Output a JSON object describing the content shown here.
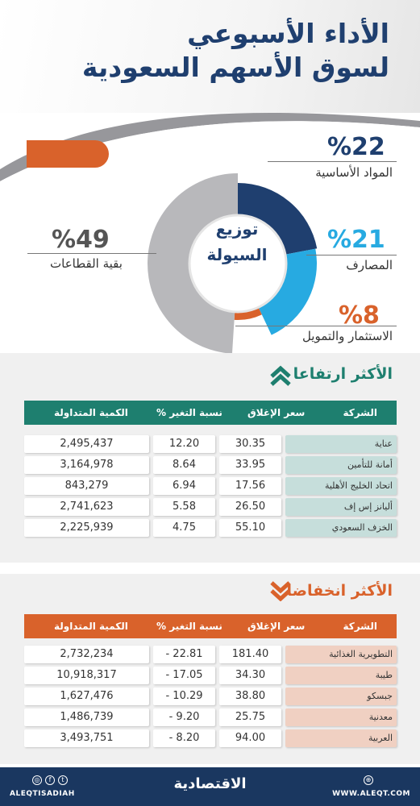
{
  "header": {
    "title_line1": "الأداء الأسبوعي",
    "title_line2": "لسوق الأسهم السعودية"
  },
  "colors": {
    "navy": "#1f3f6f",
    "light_blue": "#27aae1",
    "orange": "#d9622b",
    "grey": "#b8b8bb",
    "green": "#1e7f6f",
    "up_row": "#c6dedb",
    "down_row": "#f0d0c2"
  },
  "chart_data": {
    "type": "pie",
    "title": "توزيع السيولة",
    "labels": [
      "المواد الأساسية",
      "المصارف",
      "الاستثمار والتمويل",
      "بقية القطاعات"
    ],
    "values": [
      22,
      21,
      8,
      49
    ],
    "pct_labels": [
      "%22",
      "%21",
      "%8",
      "%49"
    ],
    "colors": [
      "#1f3f6f",
      "#27aae1",
      "#d9622b",
      "#b8b8bb"
    ]
  },
  "gainers": {
    "title": "الأكثر ارتفاعا",
    "headers": {
      "company": "الشركة",
      "close": "سعر الإغلاق",
      "change": "نسبة التغير %",
      "volume": "الكمية المتداولة"
    },
    "rows": [
      {
        "company": "عناية",
        "close": "30.35",
        "change": "12.20",
        "volume": "2,495,437"
      },
      {
        "company": "أمانة للتأمين",
        "close": "33.95",
        "change": "8.64",
        "volume": "3,164,978"
      },
      {
        "company": "اتحاد الخليج الأهلية",
        "close": "17.56",
        "change": "6.94",
        "volume": "843,279"
      },
      {
        "company": "أليانز إس إف",
        "close": "26.50",
        "change": "5.58",
        "volume": "2,741,623"
      },
      {
        "company": "الخزف السعودي",
        "close": "55.10",
        "change": "4.75",
        "volume": "2,225,939"
      }
    ]
  },
  "losers": {
    "title": "الأكثر انخفاضا",
    "headers": {
      "company": "الشركة",
      "close": "سعر الإغلاق",
      "change": "نسبة التغير %",
      "volume": "الكمية المتداولة"
    },
    "rows": [
      {
        "company": "التطويرية الغذائية",
        "close": "181.40",
        "change": "- 22.81",
        "volume": "2,732,234"
      },
      {
        "company": "طيبة",
        "close": "34.30",
        "change": "- 17.05",
        "volume": "10,918,317"
      },
      {
        "company": "جبسكو",
        "close": "38.80",
        "change": "- 10.29",
        "volume": "1,627,476"
      },
      {
        "company": "معدنية",
        "close": "25.75",
        "change": "- 9.20",
        "volume": "1,486,739"
      },
      {
        "company": "العربية",
        "close": "94.00",
        "change": "- 8.20",
        "volume": "3,493,751"
      }
    ]
  },
  "footer": {
    "logo": "الاقتصادية",
    "social_handle": "ALEQTISADIAH",
    "website": "WWW.ALEQT.COM"
  }
}
